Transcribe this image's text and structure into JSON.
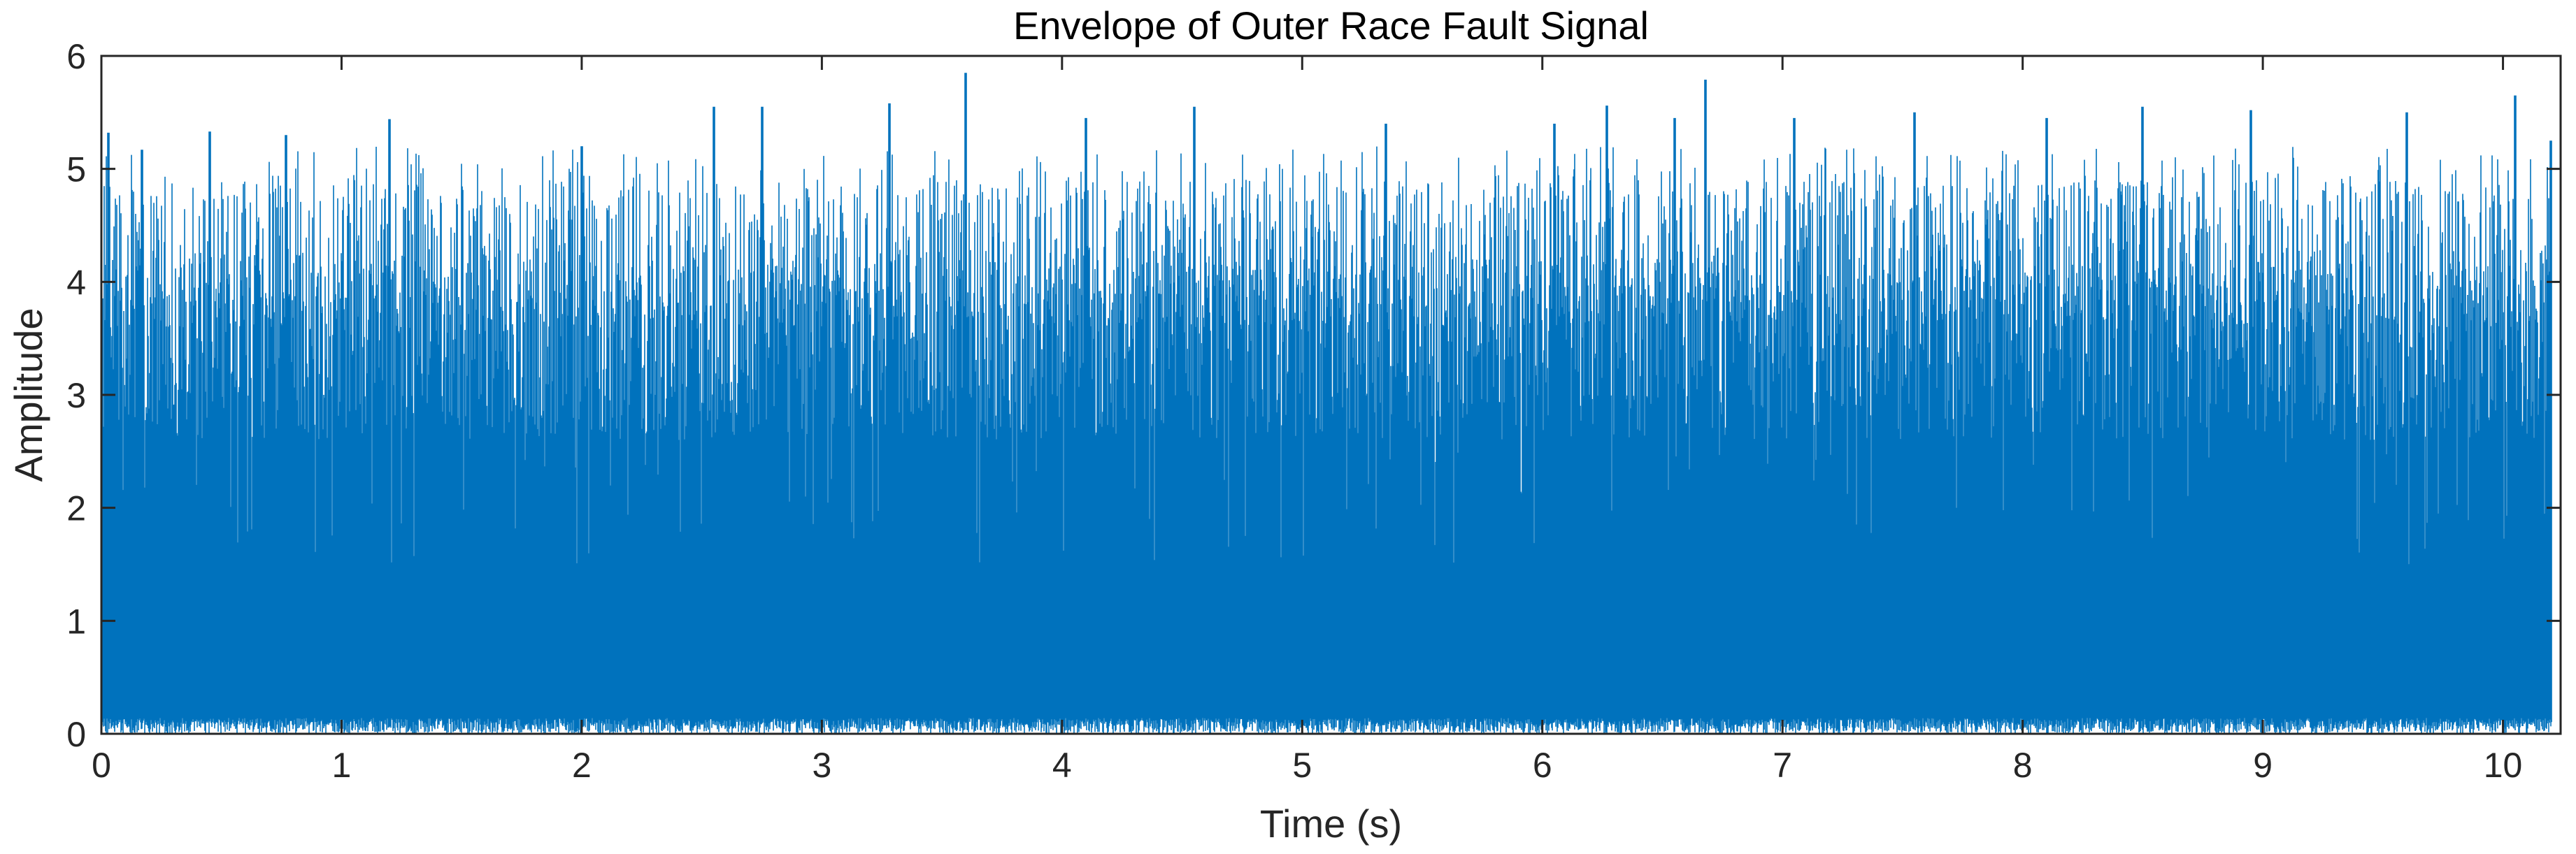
{
  "chart_data": {
    "type": "line",
    "title": "Envelope of Outer Race Fault Signal",
    "xlabel": "Time (s)",
    "ylabel": "Amplitude",
    "xlim": [
      0,
      10.24
    ],
    "ylim": [
      0,
      6
    ],
    "xticks": [
      "0",
      "1",
      "2",
      "3",
      "4",
      "5",
      "6",
      "7",
      "8",
      "9",
      "10"
    ],
    "yticks": [
      "0",
      "1",
      "2",
      "3",
      "4",
      "5",
      "6"
    ],
    "grid": false,
    "legend": "none",
    "series": [
      {
        "color": "#0072BD",
        "x_range": [
          0,
          10.2
        ],
        "typical_envelope_range": [
          0.1,
          4.8
        ],
        "peak_values": [
          [
            0.03,
            5.32
          ],
          [
            0.17,
            5.17
          ],
          [
            0.45,
            5.33
          ],
          [
            0.77,
            5.3
          ],
          [
            1.2,
            5.44
          ],
          [
            2.0,
            5.2
          ],
          [
            2.55,
            5.55
          ],
          [
            2.75,
            5.55
          ],
          [
            3.28,
            5.58
          ],
          [
            3.6,
            5.85
          ],
          [
            4.1,
            5.45
          ],
          [
            4.55,
            5.55
          ],
          [
            5.35,
            5.4
          ],
          [
            6.05,
            5.4
          ],
          [
            6.27,
            5.56
          ],
          [
            6.55,
            5.45
          ],
          [
            6.68,
            5.79
          ],
          [
            7.05,
            5.45
          ],
          [
            7.55,
            5.5
          ],
          [
            8.1,
            5.45
          ],
          [
            8.5,
            5.55
          ],
          [
            8.95,
            5.52
          ],
          [
            9.6,
            5.5
          ],
          [
            10.05,
            5.65
          ],
          [
            10.2,
            5.25
          ]
        ]
      }
    ]
  }
}
